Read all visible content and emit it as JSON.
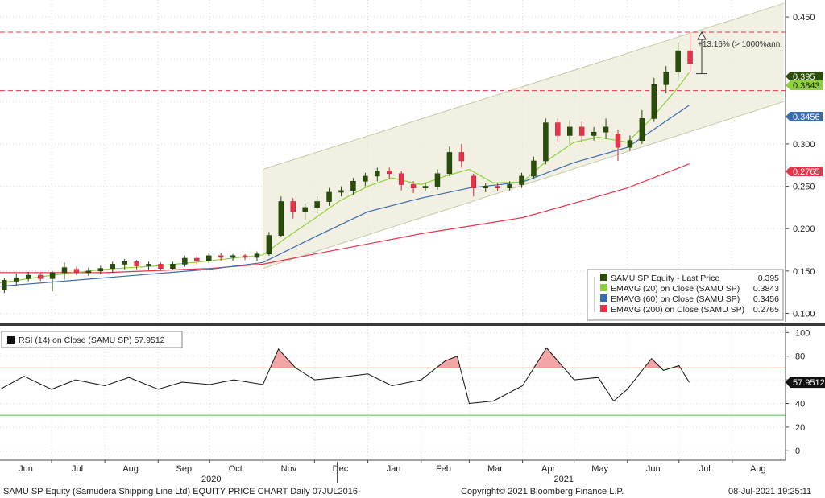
{
  "chart_data": [
    {
      "type": "candlestick",
      "panel": "price",
      "ylim": [
        0.09,
        0.47
      ],
      "y_ticks": [
        "0.100",
        "0.150",
        "0.200",
        "0.250",
        "0.300",
        "0.450"
      ],
      "annotation": "+13.16% (> 1000%ann.",
      "reference_lines": [
        0.432,
        0.363
      ],
      "channel": {
        "upper": [
          [
            "2020-11-01",
            0.27
          ],
          [
            "2021-08-31",
            0.466
          ]
        ],
        "lower": [
          [
            "2020-11-01",
            0.153
          ],
          [
            "2021-08-31",
            0.35
          ]
        ]
      },
      "candles_weekly": [
        {
          "week": "2020-06-01",
          "open": 0.128,
          "close": 0.139,
          "low": 0.124,
          "high": 0.142
        },
        {
          "week": "2020-06-08",
          "open": 0.138,
          "close": 0.142,
          "low": 0.133,
          "high": 0.147
        },
        {
          "week": "2020-06-15",
          "open": 0.141,
          "close": 0.145,
          "low": 0.138,
          "high": 0.149
        },
        {
          "week": "2020-06-22",
          "open": 0.145,
          "close": 0.141,
          "low": 0.138,
          "high": 0.148
        },
        {
          "week": "2020-06-29",
          "open": 0.141,
          "close": 0.148,
          "low": 0.126,
          "high": 0.15
        },
        {
          "week": "2020-07-06",
          "open": 0.148,
          "close": 0.154,
          "low": 0.14,
          "high": 0.16
        },
        {
          "week": "2020-07-13",
          "open": 0.152,
          "close": 0.148,
          "low": 0.145,
          "high": 0.155
        },
        {
          "week": "2020-07-20",
          "open": 0.148,
          "close": 0.15,
          "low": 0.144,
          "high": 0.154
        },
        {
          "week": "2020-07-27",
          "open": 0.15,
          "close": 0.153,
          "low": 0.146,
          "high": 0.156
        },
        {
          "week": "2020-08-03",
          "open": 0.153,
          "close": 0.158,
          "low": 0.148,
          "high": 0.161
        },
        {
          "week": "2020-08-10",
          "open": 0.158,
          "close": 0.161,
          "low": 0.152,
          "high": 0.164
        },
        {
          "week": "2020-08-17",
          "open": 0.161,
          "close": 0.156,
          "low": 0.152,
          "high": 0.163
        },
        {
          "week": "2020-08-24",
          "open": 0.156,
          "close": 0.158,
          "low": 0.151,
          "high": 0.161
        },
        {
          "week": "2020-08-31",
          "open": 0.158,
          "close": 0.153,
          "low": 0.15,
          "high": 0.16
        },
        {
          "week": "2020-09-07",
          "open": 0.153,
          "close": 0.158,
          "low": 0.151,
          "high": 0.161
        },
        {
          "week": "2020-09-14",
          "open": 0.158,
          "close": 0.165,
          "low": 0.155,
          "high": 0.168
        },
        {
          "week": "2020-09-21",
          "open": 0.165,
          "close": 0.162,
          "low": 0.158,
          "high": 0.168
        },
        {
          "week": "2020-09-28",
          "open": 0.162,
          "close": 0.168,
          "low": 0.159,
          "high": 0.171
        },
        {
          "week": "2020-10-05",
          "open": 0.168,
          "close": 0.166,
          "low": 0.162,
          "high": 0.171
        },
        {
          "week": "2020-10-12",
          "open": 0.166,
          "close": 0.168,
          "low": 0.162,
          "high": 0.17
        },
        {
          "week": "2020-10-19",
          "open": 0.168,
          "close": 0.166,
          "low": 0.163,
          "high": 0.17
        },
        {
          "week": "2020-10-26",
          "open": 0.166,
          "close": 0.17,
          "low": 0.162,
          "high": 0.173
        },
        {
          "week": "2020-11-02",
          "open": 0.17,
          "close": 0.192,
          "low": 0.168,
          "high": 0.196
        },
        {
          "week": "2020-11-09",
          "open": 0.192,
          "close": 0.232,
          "low": 0.19,
          "high": 0.238
        },
        {
          "week": "2020-11-16",
          "open": 0.232,
          "close": 0.22,
          "low": 0.212,
          "high": 0.236
        },
        {
          "week": "2020-11-23",
          "open": 0.22,
          "close": 0.225,
          "low": 0.21,
          "high": 0.23
        },
        {
          "week": "2020-11-30",
          "open": 0.225,
          "close": 0.232,
          "low": 0.218,
          "high": 0.238
        },
        {
          "week": "2020-12-07",
          "open": 0.232,
          "close": 0.243,
          "low": 0.227,
          "high": 0.248
        },
        {
          "week": "2020-12-14",
          "open": 0.243,
          "close": 0.245,
          "low": 0.238,
          "high": 0.25
        },
        {
          "week": "2020-12-21",
          "open": 0.245,
          "close": 0.256,
          "low": 0.24,
          "high": 0.26
        },
        {
          "week": "2020-12-28",
          "open": 0.256,
          "close": 0.262,
          "low": 0.25,
          "high": 0.266
        },
        {
          "week": "2021-01-04",
          "open": 0.262,
          "close": 0.268,
          "low": 0.256,
          "high": 0.272
        },
        {
          "week": "2021-01-11",
          "open": 0.268,
          "close": 0.265,
          "low": 0.258,
          "high": 0.272
        },
        {
          "week": "2021-01-18",
          "open": 0.265,
          "close": 0.252,
          "low": 0.245,
          "high": 0.268
        },
        {
          "week": "2021-01-25",
          "open": 0.252,
          "close": 0.248,
          "low": 0.242,
          "high": 0.256
        },
        {
          "week": "2021-02-01",
          "open": 0.248,
          "close": 0.25,
          "low": 0.244,
          "high": 0.254
        },
        {
          "week": "2021-02-08",
          "open": 0.25,
          "close": 0.265,
          "low": 0.246,
          "high": 0.27
        },
        {
          "week": "2021-02-15",
          "open": 0.265,
          "close": 0.29,
          "low": 0.262,
          "high": 0.297
        },
        {
          "week": "2021-02-22",
          "open": 0.29,
          "close": 0.28,
          "low": 0.272,
          "high": 0.3
        },
        {
          "week": "2021-03-01",
          "open": 0.262,
          "close": 0.248,
          "low": 0.238,
          "high": 0.265
        },
        {
          "week": "2021-03-08",
          "open": 0.248,
          "close": 0.25,
          "low": 0.243,
          "high": 0.254
        },
        {
          "week": "2021-03-15",
          "open": 0.25,
          "close": 0.248,
          "low": 0.244,
          "high": 0.254
        },
        {
          "week": "2021-03-22",
          "open": 0.248,
          "close": 0.252,
          "low": 0.245,
          "high": 0.256
        },
        {
          "week": "2021-03-29",
          "open": 0.252,
          "close": 0.262,
          "low": 0.248,
          "high": 0.266
        },
        {
          "week": "2021-04-05",
          "open": 0.262,
          "close": 0.28,
          "low": 0.258,
          "high": 0.285
        },
        {
          "week": "2021-04-12",
          "open": 0.28,
          "close": 0.325,
          "low": 0.276,
          "high": 0.33
        },
        {
          "week": "2021-04-19",
          "open": 0.325,
          "close": 0.31,
          "low": 0.302,
          "high": 0.33
        },
        {
          "week": "2021-04-26",
          "open": 0.31,
          "close": 0.32,
          "low": 0.3,
          "high": 0.328
        },
        {
          "week": "2021-05-03",
          "open": 0.32,
          "close": 0.31,
          "low": 0.302,
          "high": 0.326
        },
        {
          "week": "2021-05-10",
          "open": 0.31,
          "close": 0.314,
          "low": 0.304,
          "high": 0.32
        },
        {
          "week": "2021-05-17",
          "open": 0.314,
          "close": 0.32,
          "low": 0.306,
          "high": 0.33
        },
        {
          "week": "2021-05-24",
          "open": 0.312,
          "close": 0.296,
          "low": 0.28,
          "high": 0.316
        },
        {
          "week": "2021-05-31",
          "open": 0.296,
          "close": 0.304,
          "low": 0.292,
          "high": 0.31
        },
        {
          "week": "2021-06-07",
          "open": 0.304,
          "close": 0.33,
          "low": 0.3,
          "high": 0.34
        },
        {
          "week": "2021-06-14",
          "open": 0.33,
          "close": 0.37,
          "low": 0.326,
          "high": 0.378
        },
        {
          "week": "2021-06-21",
          "open": 0.37,
          "close": 0.385,
          "low": 0.36,
          "high": 0.392
        },
        {
          "week": "2021-06-28",
          "open": 0.385,
          "close": 0.41,
          "low": 0.376,
          "high": 0.42
        },
        {
          "week": "2021-07-05",
          "open": 0.41,
          "close": 0.395,
          "low": 0.385,
          "high": 0.432
        }
      ],
      "series": [
        {
          "name": "SAMU SP Equity - Last Price",
          "value_label": "0.395",
          "color": "#2a4e0a"
        },
        {
          "name": "EMAVG (20) on Close (SAMU SP)",
          "value_label": "0.3843",
          "color": "#8fd13a",
          "points": [
            [
              "2020-06-01",
              0.136
            ],
            [
              "2020-07-01",
              0.145
            ],
            [
              "2020-08-01",
              0.152
            ],
            [
              "2020-09-01",
              0.156
            ],
            [
              "2020-10-01",
              0.162
            ],
            [
              "2020-11-01",
              0.169
            ],
            [
              "2020-11-15",
              0.19
            ],
            [
              "2020-12-01",
              0.212
            ],
            [
              "2020-12-15",
              0.232
            ],
            [
              "2021-01-01",
              0.25
            ],
            [
              "2021-01-15",
              0.26
            ],
            [
              "2021-02-01",
              0.252
            ],
            [
              "2021-02-15",
              0.262
            ],
            [
              "2021-03-01",
              0.27
            ],
            [
              "2021-03-15",
              0.254
            ],
            [
              "2021-04-01",
              0.255
            ],
            [
              "2021-04-15",
              0.28
            ],
            [
              "2021-05-01",
              0.302
            ],
            [
              "2021-05-15",
              0.308
            ],
            [
              "2021-06-01",
              0.302
            ],
            [
              "2021-06-15",
              0.33
            ],
            [
              "2021-07-01",
              0.368
            ],
            [
              "2021-07-07",
              0.3843
            ]
          ]
        },
        {
          "name": "EMAVG (60) on Close (SAMU SP)",
          "value_label": "0.3456",
          "color": "#3a6cb0",
          "points": [
            [
              "2020-06-01",
              0.132
            ],
            [
              "2020-08-01",
              0.142
            ],
            [
              "2020-10-01",
              0.152
            ],
            [
              "2020-11-01",
              0.16
            ],
            [
              "2020-12-01",
              0.19
            ],
            [
              "2021-01-01",
              0.22
            ],
            [
              "2021-02-01",
              0.236
            ],
            [
              "2021-03-01",
              0.248
            ],
            [
              "2021-04-01",
              0.255
            ],
            [
              "2021-05-01",
              0.278
            ],
            [
              "2021-06-01",
              0.296
            ],
            [
              "2021-07-07",
              0.3456
            ]
          ]
        },
        {
          "name": "EMAVG (200) on Close (SAMU SP)",
          "value_label": "0.2765",
          "color": "#e8334a",
          "points": [
            [
              "2020-06-01",
              0.148
            ],
            [
              "2020-08-01",
              0.148
            ],
            [
              "2020-10-01",
              0.153
            ],
            [
              "2020-11-01",
              0.158
            ],
            [
              "2020-12-01",
              0.17
            ],
            [
              "2021-01-01",
              0.182
            ],
            [
              "2021-02-01",
              0.194
            ],
            [
              "2021-03-01",
              0.203
            ],
            [
              "2021-04-01",
              0.213
            ],
            [
              "2021-05-01",
              0.23
            ],
            [
              "2021-06-01",
              0.248
            ],
            [
              "2021-07-07",
              0.2765
            ]
          ]
        }
      ]
    },
    {
      "type": "line",
      "panel": "rsi",
      "legend": "RSI (14)  on Close (SAMU SP) 57.9512",
      "value_label": "57.9512",
      "ylim": [
        -8,
        105
      ],
      "y_ticks": [
        "100",
        "80",
        "60",
        "40",
        "20",
        "0"
      ],
      "upper_band": 70,
      "lower_band": 30,
      "series": [
        {
          "name": "RSI (14)  on Close (SAMU SP)",
          "color": "#111111",
          "points": [
            [
              "2020-06-01",
              52
            ],
            [
              "2020-06-15",
              63
            ],
            [
              "2020-07-01",
              52
            ],
            [
              "2020-07-15",
              60
            ],
            [
              "2020-08-01",
              55
            ],
            [
              "2020-08-15",
              62
            ],
            [
              "2020-09-01",
              52
            ],
            [
              "2020-09-15",
              58
            ],
            [
              "2020-10-01",
              56
            ],
            [
              "2020-10-15",
              60
            ],
            [
              "2020-11-01",
              56
            ],
            [
              "2020-11-10",
              86
            ],
            [
              "2020-11-20",
              70
            ],
            [
              "2020-12-01",
              60
            ],
            [
              "2020-12-15",
              62
            ],
            [
              "2021-01-01",
              65
            ],
            [
              "2021-01-15",
              55
            ],
            [
              "2021-02-01",
              60
            ],
            [
              "2021-02-15",
              76
            ],
            [
              "2021-02-22",
              80
            ],
            [
              "2021-03-01",
              40
            ],
            [
              "2021-03-15",
              42
            ],
            [
              "2021-04-01",
              55
            ],
            [
              "2021-04-15",
              87
            ],
            [
              "2021-05-01",
              60
            ],
            [
              "2021-05-15",
              62
            ],
            [
              "2021-05-24",
              42
            ],
            [
              "2021-06-01",
              52
            ],
            [
              "2021-06-15",
              78
            ],
            [
              "2021-06-22",
              68
            ],
            [
              "2021-07-01",
              72
            ],
            [
              "2021-07-07",
              57.9512
            ]
          ]
        }
      ]
    }
  ],
  "x_axis": {
    "months": [
      "Jun",
      "Jul",
      "Aug",
      "Sep",
      "Oct",
      "Nov",
      "Dec",
      "Jan",
      "Feb",
      "Mar",
      "Apr",
      "May",
      "Jun",
      "Jul",
      "Aug"
    ],
    "years": [
      "2020",
      "2021"
    ]
  },
  "footer": {
    "left": "SAMU SP Equity (Samudera Shipping Line Ltd) EQUITY PRICE CHART  Daily 07JUL2016-",
    "center": "Copyright© 2021 Bloomberg Finance L.P.",
    "right": "08-Jul-2021 19:25:11"
  }
}
